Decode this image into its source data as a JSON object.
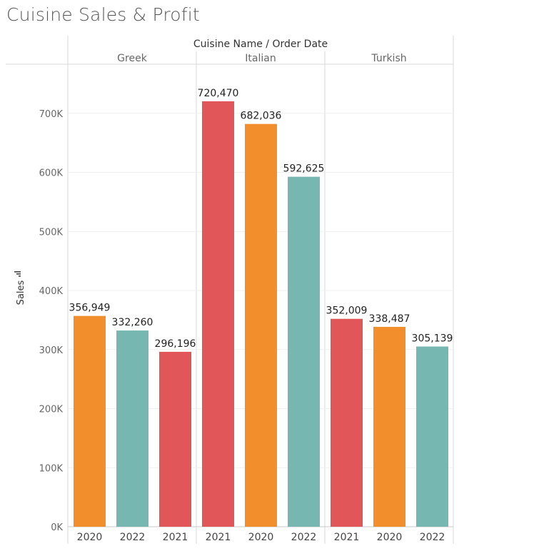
{
  "title": "Cuisine Sales & Profit",
  "chart_data": {
    "type": "bar",
    "header": "Cuisine Name  /  Order Date",
    "ylabel": "Sales",
    "ylim": [
      0,
      780000
    ],
    "yticks": [
      0,
      100000,
      200000,
      300000,
      400000,
      500000,
      600000,
      700000
    ],
    "ytick_labels": [
      "0K",
      "100K",
      "200K",
      "300K",
      "400K",
      "500K",
      "600K",
      "700K"
    ],
    "grid": true,
    "year_colors": {
      "2020": "#f28e2b",
      "2021": "#e15759",
      "2022": "#76b7b2"
    },
    "panels": [
      {
        "name": "Greek",
        "bars": [
          {
            "year": "2020",
            "value": 356949,
            "label": "356,949"
          },
          {
            "year": "2022",
            "value": 332260,
            "label": "332,260"
          },
          {
            "year": "2021",
            "value": 296196,
            "label": "296,196"
          }
        ]
      },
      {
        "name": "Italian",
        "bars": [
          {
            "year": "2021",
            "value": 720470,
            "label": "720,470"
          },
          {
            "year": "2020",
            "value": 682036,
            "label": "682,036"
          },
          {
            "year": "2022",
            "value": 592625,
            "label": "592,625"
          }
        ]
      },
      {
        "name": "Turkish",
        "bars": [
          {
            "year": "2021",
            "value": 352009,
            "label": "352,009"
          },
          {
            "year": "2020",
            "value": 338487,
            "label": "338,487"
          },
          {
            "year": "2022",
            "value": 305139,
            "label": "305,139"
          }
        ]
      }
    ]
  }
}
